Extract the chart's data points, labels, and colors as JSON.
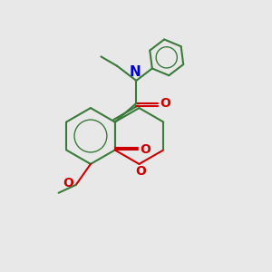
{
  "background_color": "#e8e8e8",
  "bond_color": "#3a7a3a",
  "oxygen_color": "#cc0000",
  "nitrogen_color": "#0000cc",
  "figsize": [
    3.0,
    3.0
  ],
  "dpi": 100,
  "xlim": [
    0,
    10
  ],
  "ylim": [
    0,
    10
  ]
}
